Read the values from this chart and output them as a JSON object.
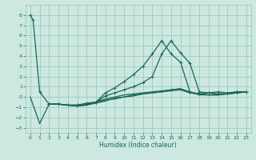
{
  "xlabel": "Humidex (Indice chaleur)",
  "bg_color": "#cce8e0",
  "grid_color": "#99ccbb",
  "line_color": "#1a6655",
  "xlim": [
    -0.5,
    23.5
  ],
  "ylim": [
    -3.5,
    9.0
  ],
  "xticks": [
    0,
    1,
    2,
    3,
    4,
    5,
    6,
    7,
    8,
    9,
    10,
    11,
    12,
    13,
    14,
    15,
    16,
    17,
    18,
    19,
    20,
    21,
    22,
    23
  ],
  "yticks": [
    -3,
    -2,
    -1,
    0,
    1,
    2,
    3,
    4,
    5,
    6,
    7,
    8
  ],
  "curves": [
    {
      "x": [
        0,
        0.3,
        1,
        2,
        3,
        4,
        5,
        6,
        7,
        8,
        9,
        10,
        11,
        12,
        13,
        14,
        15,
        16,
        17,
        18,
        19,
        20,
        21,
        22,
        23
      ],
      "y": [
        8,
        7.5,
        0.5,
        -0.7,
        -0.7,
        -0.8,
        -0.8,
        -0.6,
        -0.5,
        0.4,
        0.9,
        1.5,
        2.2,
        3.0,
        4.2,
        5.5,
        4.2,
        3.4,
        0.5,
        0.3,
        0.4,
        0.3,
        0.3,
        0.5,
        0.5
      ],
      "marker": true
    },
    {
      "x": [
        0,
        1,
        2,
        3,
        4,
        5,
        6,
        7,
        8,
        9,
        10,
        11,
        12,
        13,
        14,
        15,
        16,
        17,
        18,
        19,
        20,
        21,
        22,
        23
      ],
      "y": [
        0,
        -2.6,
        -0.7,
        -0.7,
        -0.8,
        -0.8,
        -0.7,
        -0.5,
        -0.2,
        0.0,
        0.2,
        0.3,
        0.4,
        0.5,
        0.6,
        0.7,
        0.8,
        0.5,
        0.2,
        0.2,
        0.3,
        0.3,
        0.4,
        0.5
      ],
      "marker": false
    },
    {
      "x": [
        2,
        3,
        4,
        5,
        6,
        7,
        8,
        9,
        10,
        11,
        12,
        13,
        14,
        15,
        16,
        17,
        18,
        19,
        20,
        21,
        22,
        23
      ],
      "y": [
        -0.7,
        -0.7,
        -0.8,
        -0.8,
        -0.7,
        -0.5,
        0.1,
        0.4,
        0.7,
        1.0,
        1.4,
        2.0,
        4.2,
        5.5,
        4.3,
        3.3,
        0.5,
        0.4,
        0.5,
        0.4,
        0.5,
        0.5
      ],
      "marker": true
    },
    {
      "x": [
        2,
        3,
        4,
        5,
        6,
        7,
        8,
        9,
        10,
        11,
        12,
        13,
        14,
        15,
        16,
        17,
        18,
        19,
        20,
        21,
        22,
        23
      ],
      "y": [
        -0.7,
        -0.7,
        -0.8,
        -0.9,
        -0.8,
        -0.6,
        -0.4,
        -0.1,
        0.0,
        0.2,
        0.3,
        0.4,
        0.5,
        0.6,
        0.7,
        0.4,
        0.3,
        0.2,
        0.2,
        0.3,
        0.4,
        0.5
      ],
      "marker": false
    },
    {
      "x": [
        2,
        3,
        4,
        5,
        6,
        7,
        8,
        9,
        10,
        11,
        12,
        13,
        14,
        15,
        16,
        17,
        18,
        19,
        20,
        21,
        22,
        23
      ],
      "y": [
        -0.7,
        -0.7,
        -0.8,
        -0.9,
        -0.7,
        -0.5,
        -0.3,
        -0.2,
        0.0,
        0.1,
        0.3,
        0.4,
        0.5,
        0.7,
        0.8,
        0.4,
        0.3,
        0.2,
        0.2,
        0.3,
        0.4,
        0.5
      ],
      "marker": false
    }
  ]
}
